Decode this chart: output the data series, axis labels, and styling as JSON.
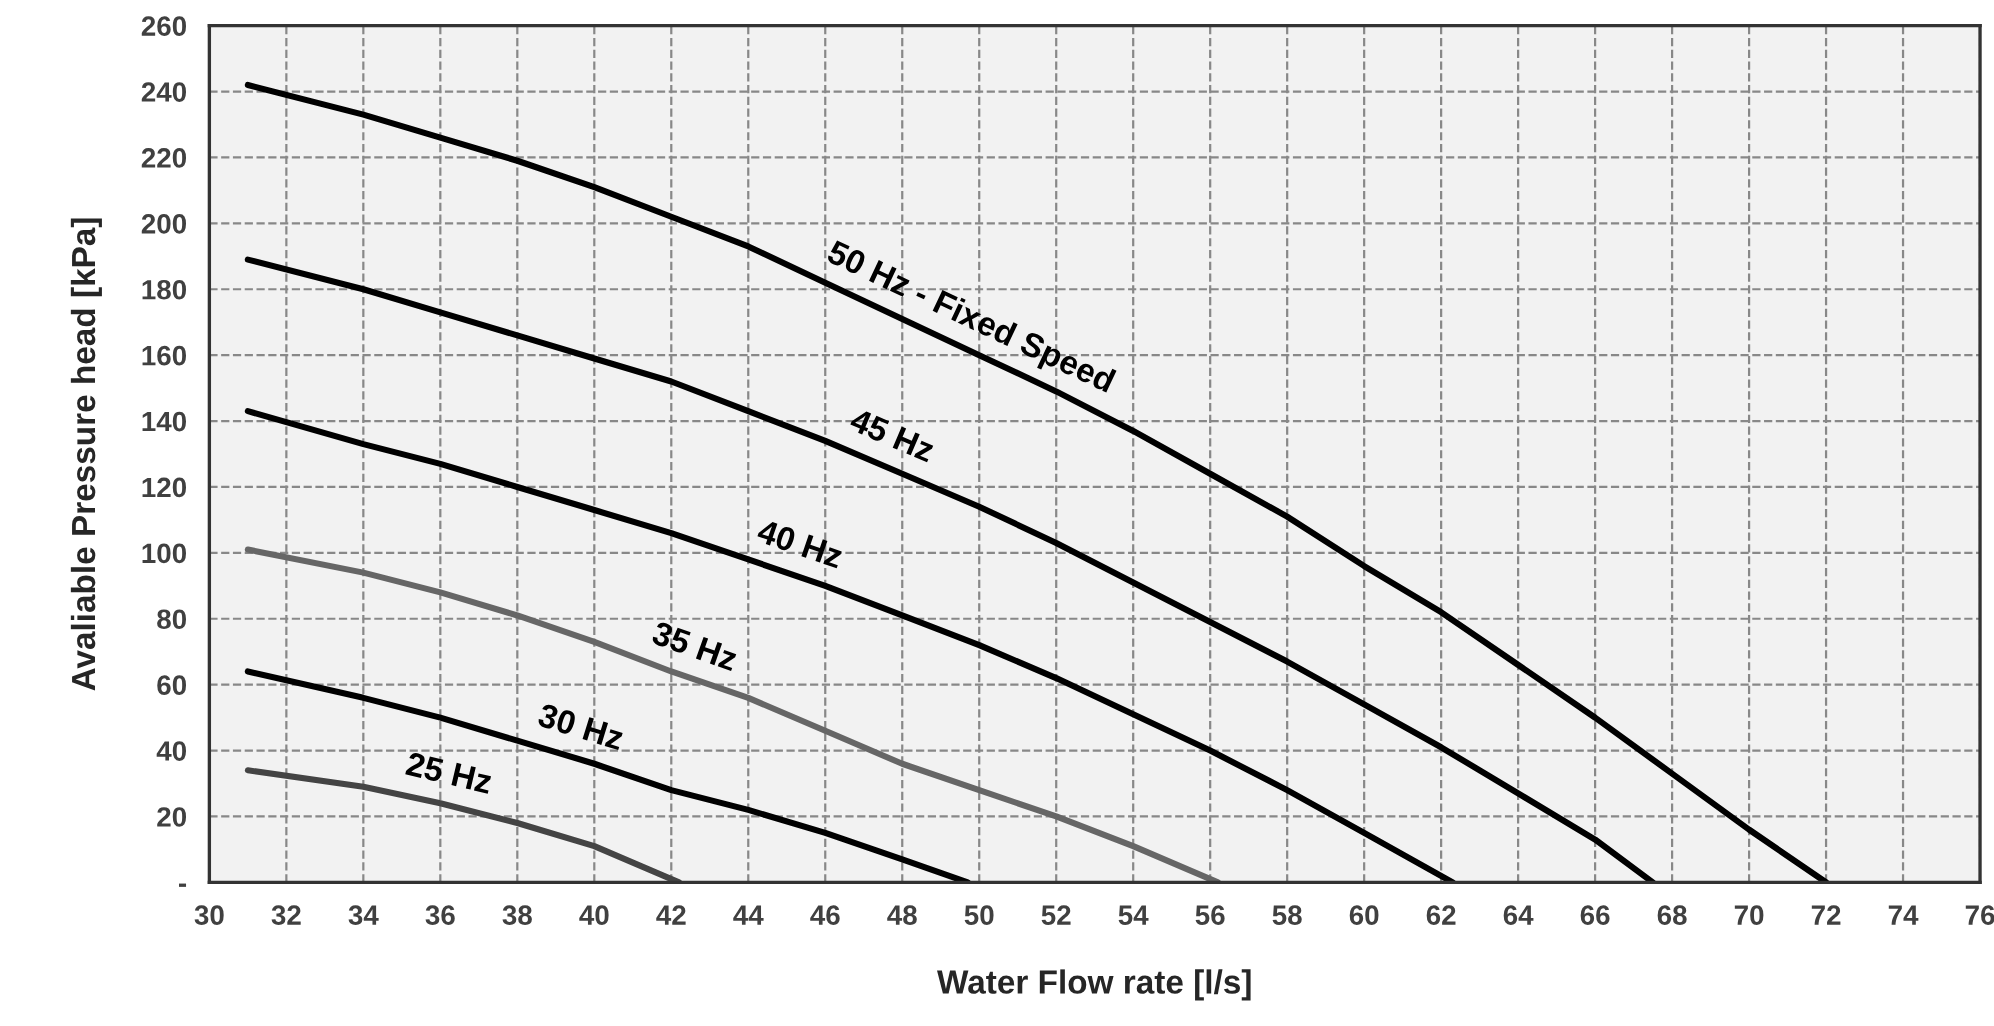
{
  "chart_data": {
    "type": "line",
    "xlabel": "Water Flow rate [l/s]",
    "ylabel": "Avaliable Pressure head [kPa]",
    "xlim": [
      30,
      76
    ],
    "xticks": [
      30,
      32,
      34,
      36,
      38,
      40,
      42,
      44,
      46,
      48,
      50,
      52,
      54,
      56,
      58,
      60,
      62,
      64,
      66,
      68,
      70,
      72,
      74,
      76
    ],
    "ylim": [
      0,
      260
    ],
    "yticks": [
      {
        "value": 0,
        "label": "-"
      },
      20,
      40,
      60,
      80,
      100,
      120,
      140,
      160,
      180,
      200,
      220,
      240,
      260
    ],
    "grid": true,
    "legend": false,
    "marker": "none",
    "line_style": "solid",
    "series": [
      {
        "name": "50 Hz - Fixed Speed",
        "color": "#000000",
        "x": [
          31,
          34,
          36,
          38,
          40,
          42,
          44,
          46,
          48,
          50,
          52,
          54,
          56,
          58,
          60,
          62,
          64,
          66,
          68,
          70,
          72
        ],
        "values": [
          242,
          233,
          226,
          219,
          211,
          202,
          193,
          182,
          171,
          160,
          149,
          137,
          124,
          111,
          96,
          82,
          66,
          50,
          33,
          16,
          0
        ]
      },
      {
        "name": "45 Hz",
        "color": "#000000",
        "x": [
          31,
          34,
          36,
          38,
          40,
          42,
          44,
          46,
          48,
          50,
          52,
          54,
          56,
          58,
          60,
          62,
          64,
          66,
          67.5
        ],
        "values": [
          189,
          180,
          173,
          166,
          159,
          152,
          143,
          134,
          124,
          114,
          103,
          91,
          79,
          67,
          54,
          41,
          27,
          13,
          0
        ]
      },
      {
        "name": "40 Hz",
        "color": "#000000",
        "x": [
          31,
          34,
          36,
          38,
          40,
          42,
          44,
          46,
          48,
          50,
          52,
          54,
          56,
          58,
          60,
          62.3
        ],
        "values": [
          143,
          133,
          127,
          120,
          113,
          106,
          98,
          90,
          81,
          72,
          62,
          51,
          40,
          28,
          15,
          0
        ]
      },
      {
        "name": "35 Hz",
        "color": "#666666",
        "x": [
          31,
          34,
          36,
          38,
          40,
          42,
          44,
          46,
          48,
          50,
          52,
          54,
          56.2
        ],
        "values": [
          101,
          94,
          88,
          81,
          73,
          64,
          56,
          46,
          36,
          28,
          20,
          11,
          0
        ]
      },
      {
        "name": "30 Hz",
        "color": "#000000",
        "x": [
          31,
          34,
          36,
          38,
          40,
          42,
          44,
          46,
          48,
          49.7
        ],
        "values": [
          64,
          56,
          50,
          43,
          36,
          28,
          22,
          15,
          7,
          0
        ]
      },
      {
        "name": "25 Hz",
        "color": "#444444",
        "x": [
          31,
          34,
          36,
          38,
          40,
          42.2
        ],
        "values": [
          34,
          29,
          24,
          18,
          11,
          0
        ]
      }
    ]
  }
}
